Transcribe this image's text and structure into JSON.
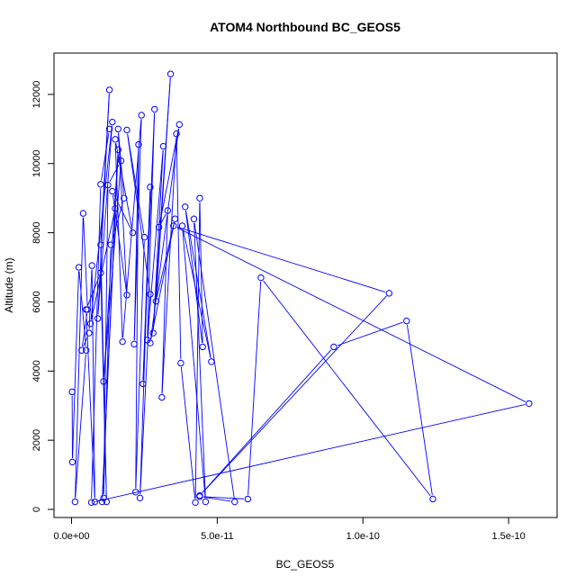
{
  "chart_data": {
    "type": "line",
    "title": "ATOM4 Northbound BC_GEOS5",
    "xlabel": "BC_GEOS5",
    "ylabel": "Altitude (m)",
    "xlim": [
      0,
      1.6e-10
    ],
    "ylim": [
      0,
      12700
    ],
    "x_ticks": [
      {
        "value": 0,
        "label": "0.0e+00"
      },
      {
        "value": 5e-11,
        "label": "5.0e-11"
      },
      {
        "value": 1e-10,
        "label": "1.0e-10"
      },
      {
        "value": 1.5e-10,
        "label": "1.5e-10"
      }
    ],
    "y_ticks": [
      {
        "value": 0,
        "label": "0"
      },
      {
        "value": 2000,
        "label": "2000"
      },
      {
        "value": 4000,
        "label": "4000"
      },
      {
        "value": 6000,
        "label": "6000"
      },
      {
        "value": 8000,
        "label": "8000"
      },
      {
        "value": 10000,
        "label": "10000"
      },
      {
        "value": 12000,
        "label": "12000"
      }
    ],
    "grid": false,
    "series": [
      {
        "color": "#0000ff",
        "marker": "open-circle",
        "points": [
          [
            2e-13,
            3400
          ],
          [
            3e-13,
            1370
          ],
          [
            2.5e-12,
            7000
          ],
          [
            5e-12,
            4600
          ],
          [
            1.2e-12,
            220
          ],
          [
            4e-12,
            8560
          ],
          [
            5.5e-12,
            5780
          ],
          [
            3.5e-12,
            4600
          ],
          [
            6e-12,
            5100
          ],
          [
            7e-12,
            7050
          ],
          [
            8e-12,
            220
          ],
          [
            5e-12,
            5780
          ],
          [
            1e-11,
            6840
          ],
          [
            1.2e-11,
            220
          ],
          [
            1e-11,
            7650
          ],
          [
            1.3e-11,
            12130
          ],
          [
            9e-12,
            5520
          ],
          [
            1.4e-11,
            11200
          ],
          [
            6.5e-12,
            5370
          ],
          [
            1.5e-11,
            8700
          ],
          [
            1.05e-11,
            220
          ],
          [
            1.6e-11,
            10400
          ],
          [
            1.1e-11,
            3700
          ],
          [
            1.7e-11,
            10080
          ],
          [
            1.25e-11,
            9380
          ],
          [
            1.1e-11,
            330
          ],
          [
            1.35e-11,
            7650
          ],
          [
            1.8e-11,
            9000
          ],
          [
            1.6e-11,
            11000
          ],
          [
            1.9e-11,
            6200
          ],
          [
            1.4e-11,
            9200
          ],
          [
            2.1e-11,
            8000
          ],
          [
            1.5e-11,
            10700
          ],
          [
            1.75e-11,
            4850
          ],
          [
            2.4e-11,
            11400
          ],
          [
            2.15e-11,
            4780
          ],
          [
            2.3e-11,
            10550
          ],
          [
            2.2e-11,
            500
          ],
          [
            2.5e-11,
            7870
          ],
          [
            1.9e-11,
            10970
          ],
          [
            2.7e-11,
            6220
          ],
          [
            2.35e-11,
            330
          ],
          [
            2.7e-11,
            9320
          ],
          [
            2.45e-11,
            3630
          ],
          [
            2.85e-11,
            11570
          ],
          [
            2.6e-11,
            4900
          ],
          [
            3.15e-11,
            10500
          ],
          [
            2.8e-11,
            5100
          ],
          [
            3.4e-11,
            12590
          ],
          [
            2.9e-11,
            6020
          ],
          [
            3.55e-11,
            8400
          ],
          [
            2.7e-11,
            4810
          ],
          [
            3.7e-11,
            11130
          ],
          [
            3e-11,
            8160
          ],
          [
            3.3e-11,
            8640
          ],
          [
            3.1e-11,
            3240
          ],
          [
            3.6e-11,
            10860
          ],
          [
            3.75e-11,
            4230
          ],
          [
            4.25e-11,
            200
          ],
          [
            4.4e-11,
            9000
          ],
          [
            4.5e-11,
            4700
          ],
          [
            3.9e-11,
            8750
          ],
          [
            4.8e-11,
            4270
          ],
          [
            3.8e-11,
            8200
          ],
          [
            4.6e-11,
            220
          ],
          [
            4.2e-11,
            8400
          ],
          [
            5.6e-11,
            220
          ],
          [
            4.4e-11,
            370
          ],
          [
            6.05e-11,
            300
          ],
          [
            6.5e-11,
            6700
          ],
          [
            1.24e-10,
            300
          ],
          [
            1.15e-10,
            5450
          ],
          [
            9e-11,
            4700
          ],
          [
            4.4e-11,
            400
          ],
          [
            1.09e-10,
            6250
          ],
          [
            3.5e-11,
            8200
          ],
          [
            1.57e-10,
            3060
          ],
          [
            6.8e-12,
            200
          ],
          [
            1e-11,
            9400
          ],
          [
            1.3e-11,
            11000
          ]
        ]
      }
    ]
  }
}
